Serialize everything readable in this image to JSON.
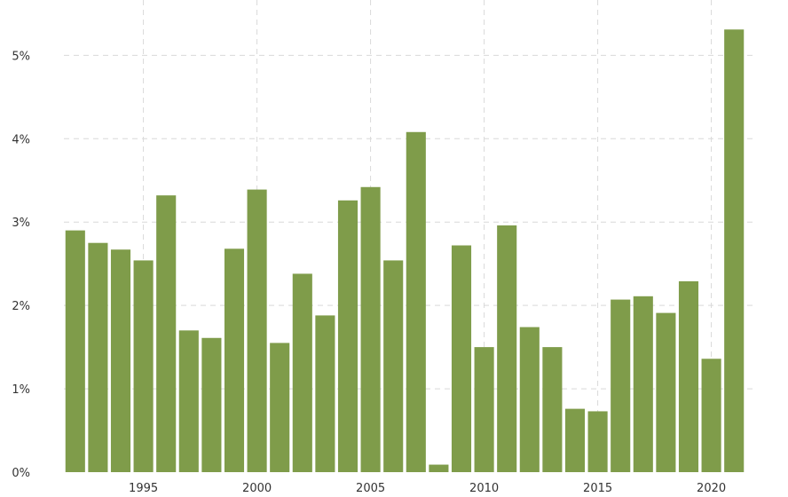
{
  "chart_data": {
    "type": "bar",
    "title": "",
    "xlabel": "",
    "ylabel": "",
    "categories": [
      "1992",
      "1993",
      "1994",
      "1995",
      "1996",
      "1997",
      "1998",
      "1999",
      "2000",
      "2001",
      "2002",
      "2003",
      "2004",
      "2005",
      "2006",
      "2007",
      "2008",
      "2009",
      "2010",
      "2011",
      "2012",
      "2013",
      "2014",
      "2015",
      "2016",
      "2017",
      "2018",
      "2019",
      "2020",
      "2021"
    ],
    "values": [
      2.9,
      2.75,
      2.67,
      2.54,
      3.32,
      1.7,
      1.61,
      2.68,
      3.39,
      1.55,
      2.38,
      1.88,
      3.26,
      3.42,
      2.54,
      4.08,
      0.09,
      2.72,
      1.5,
      2.96,
      1.74,
      1.5,
      0.76,
      0.73,
      2.07,
      2.11,
      1.91,
      2.29,
      1.36,
      5.31
    ],
    "ylim": [
      0,
      5.6
    ],
    "yticks": [
      0,
      1,
      2,
      3,
      4,
      5
    ],
    "ytick_labels": [
      "0%",
      "1%",
      "2%",
      "3%",
      "4%",
      "5%"
    ],
    "xticks": [
      "1995",
      "2000",
      "2005",
      "2010",
      "2015",
      "2020"
    ],
    "grid": true,
    "bar_color": "#7f9c4a"
  }
}
